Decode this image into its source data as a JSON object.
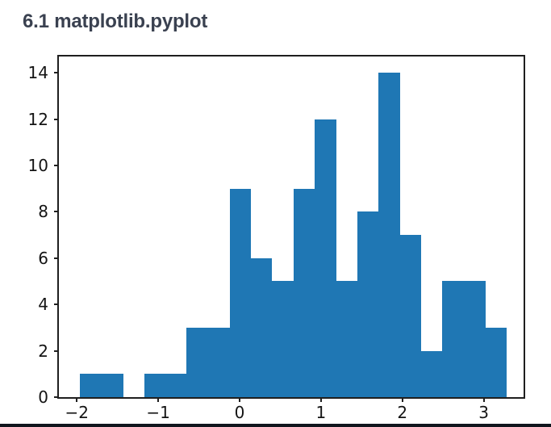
{
  "page": {
    "title": "6.1 matplotlib.pyplot",
    "title_color": "#3a4150",
    "background_color": "#ffffff",
    "divider_color": "#10151d"
  },
  "chart_data": {
    "type": "bar",
    "subtype": "histogram",
    "title": "",
    "xlabel": "",
    "ylabel": "",
    "bar_color": "#1f77b4",
    "spine_color": "#1f1f1f",
    "tick_color": "#1f1f1f",
    "tick_label_color": "#141414",
    "grid": false,
    "legend_position": "none",
    "total_samples": 100,
    "bin_edges": [
      -1.96,
      -1.69,
      -1.43,
      -1.17,
      -0.91,
      -0.65,
      -0.38,
      -0.12,
      0.14,
      0.4,
      0.66,
      0.92,
      1.19,
      1.45,
      1.71,
      1.97,
      2.23,
      2.49,
      2.76,
      3.02,
      3.28
    ],
    "counts": [
      1,
      1,
      0,
      1,
      1,
      3,
      3,
      9,
      6,
      5,
      9,
      12,
      5,
      8,
      14,
      7,
      2,
      5,
      5,
      3
    ],
    "xlim": [
      -2.22,
      3.49
    ],
    "ylim": [
      0,
      14.7
    ],
    "x_ticks": [
      {
        "value": -2,
        "label": "−2"
      },
      {
        "value": -1,
        "label": "−1"
      },
      {
        "value": 0,
        "label": "0"
      },
      {
        "value": 1,
        "label": "1"
      },
      {
        "value": 2,
        "label": "2"
      },
      {
        "value": 3,
        "label": "3"
      }
    ],
    "y_ticks": [
      {
        "value": 0,
        "label": "0"
      },
      {
        "value": 2,
        "label": "2"
      },
      {
        "value": 4,
        "label": "4"
      },
      {
        "value": 6,
        "label": "6"
      },
      {
        "value": 8,
        "label": "8"
      },
      {
        "value": 10,
        "label": "10"
      },
      {
        "value": 12,
        "label": "12"
      },
      {
        "value": 14,
        "label": "14"
      }
    ]
  }
}
